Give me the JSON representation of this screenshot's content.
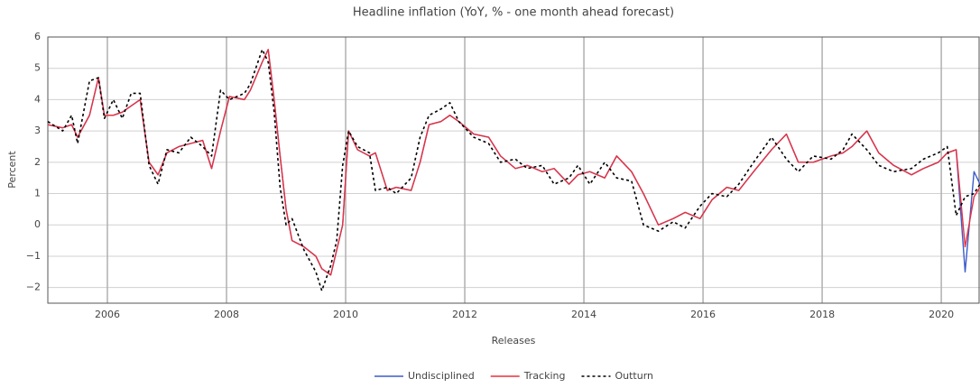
{
  "chart_data": {
    "type": "line",
    "title": "Headline inflation (YoY, % - one month ahead forecast)",
    "x_label": "Releases",
    "y_label": "Percent",
    "x": [
      2005.0,
      2005.25,
      2005.4,
      2005.5,
      2005.7,
      2005.85,
      2005.95,
      2006.1,
      2006.25,
      2006.4,
      2006.55,
      2006.7,
      2006.85,
      2007.0,
      2007.2,
      2007.4,
      2007.6,
      2007.75,
      2007.9,
      2008.05,
      2008.3,
      2008.4,
      2008.6,
      2008.7,
      2008.8,
      2008.9,
      2009.0,
      2009.1,
      2009.3,
      2009.5,
      2009.6,
      2009.75,
      2009.85,
      2009.95,
      2010.05,
      2010.2,
      2010.4,
      2010.5,
      2010.7,
      2010.85,
      2011.1,
      2011.25,
      2011.4,
      2011.6,
      2011.75,
      2011.9,
      2012.15,
      2012.4,
      2012.6,
      2012.85,
      2013.05,
      2013.3,
      2013.5,
      2013.75,
      2013.9,
      2014.1,
      2014.35,
      2014.55,
      2014.8,
      2015.0,
      2015.25,
      2015.5,
      2015.7,
      2015.95,
      2016.15,
      2016.4,
      2016.6,
      2016.85,
      2017.15,
      2017.4,
      2017.6,
      2017.85,
      2018.15,
      2018.35,
      2018.5,
      2018.75,
      2018.95,
      2019.2,
      2019.5,
      2019.7,
      2019.95,
      2020.1,
      2020.25,
      2020.4,
      2020.55,
      2020.65
    ],
    "series": [
      {
        "name": "Undisciplined",
        "color": "#3b5bcc",
        "dashed": false,
        "values": [
          3.2,
          3.1,
          3.2,
          2.8,
          3.5,
          4.7,
          3.5,
          3.5,
          3.6,
          3.8,
          4.0,
          2.0,
          1.6,
          2.3,
          2.5,
          2.6,
          2.7,
          1.8,
          3.0,
          4.1,
          4.0,
          4.3,
          5.2,
          5.6,
          4.0,
          2.2,
          0.5,
          -0.5,
          -0.7,
          -1.0,
          -1.4,
          -1.6,
          -0.8,
          0.0,
          3.0,
          2.4,
          2.2,
          2.3,
          1.1,
          1.2,
          1.1,
          2.0,
          3.2,
          3.3,
          3.5,
          3.3,
          2.9,
          2.8,
          2.2,
          1.8,
          1.9,
          1.7,
          1.8,
          1.3,
          1.6,
          1.7,
          1.5,
          2.2,
          1.7,
          1.0,
          0.0,
          0.2,
          0.4,
          0.2,
          0.8,
          1.2,
          1.1,
          1.7,
          2.4,
          2.9,
          2.0,
          2.0,
          2.2,
          2.3,
          2.5,
          3.0,
          2.3,
          1.9,
          1.6,
          1.8,
          2.0,
          2.3,
          2.4,
          -1.5,
          1.7,
          1.3
        ]
      },
      {
        "name": "Tracking",
        "color": "#e8303e",
        "dashed": false,
        "values": [
          3.2,
          3.1,
          3.2,
          2.8,
          3.5,
          4.7,
          3.5,
          3.5,
          3.6,
          3.8,
          4.0,
          2.0,
          1.6,
          2.3,
          2.5,
          2.6,
          2.7,
          1.8,
          3.0,
          4.1,
          4.0,
          4.3,
          5.2,
          5.6,
          4.0,
          2.2,
          0.5,
          -0.5,
          -0.7,
          -1.0,
          -1.4,
          -1.6,
          -0.8,
          0.0,
          3.0,
          2.4,
          2.2,
          2.3,
          1.1,
          1.2,
          1.1,
          2.0,
          3.2,
          3.3,
          3.5,
          3.3,
          2.9,
          2.8,
          2.2,
          1.8,
          1.9,
          1.7,
          1.8,
          1.3,
          1.6,
          1.7,
          1.5,
          2.2,
          1.7,
          1.0,
          0.0,
          0.2,
          0.4,
          0.2,
          0.8,
          1.2,
          1.1,
          1.7,
          2.4,
          2.9,
          2.0,
          2.0,
          2.2,
          2.3,
          2.5,
          3.0,
          2.3,
          1.9,
          1.6,
          1.8,
          2.0,
          2.3,
          2.4,
          -0.7,
          0.9,
          1.2
        ]
      },
      {
        "name": "Outturn",
        "color": "#000000",
        "dashed": true,
        "values": [
          3.3,
          3.0,
          3.5,
          2.6,
          4.6,
          4.7,
          3.4,
          4.0,
          3.4,
          4.2,
          4.2,
          1.9,
          1.3,
          2.4,
          2.3,
          2.8,
          2.5,
          2.2,
          4.3,
          4.0,
          4.2,
          4.5,
          5.6,
          5.2,
          3.6,
          1.2,
          0.0,
          0.2,
          -0.8,
          -1.5,
          -2.1,
          -1.3,
          -0.5,
          1.9,
          3.0,
          2.5,
          2.3,
          1.1,
          1.2,
          1.0,
          1.5,
          2.8,
          3.5,
          3.7,
          3.9,
          3.3,
          2.8,
          2.6,
          2.0,
          2.1,
          1.8,
          1.9,
          1.3,
          1.5,
          1.9,
          1.3,
          2.0,
          1.5,
          1.4,
          0.0,
          -0.2,
          0.1,
          -0.1,
          0.6,
          1.0,
          0.9,
          1.3,
          2.0,
          2.8,
          2.1,
          1.7,
          2.2,
          2.1,
          2.4,
          2.9,
          2.4,
          1.9,
          1.7,
          1.8,
          2.1,
          2.3,
          2.5,
          0.3,
          0.9,
          1.0,
          1.3
        ]
      }
    ],
    "xlim": [
      2005.0,
      2020.65
    ],
    "xticks": [
      2006,
      2008,
      2010,
      2012,
      2014,
      2016,
      2018,
      2020
    ],
    "ylim": [
      -2.5,
      6
    ],
    "yticks": [
      {
        "value": -2,
        "label": "−2"
      },
      {
        "value": -1,
        "label": "−1"
      },
      0,
      1,
      2,
      3,
      4,
      5,
      6
    ],
    "grid": true,
    "legend": "bottom"
  }
}
